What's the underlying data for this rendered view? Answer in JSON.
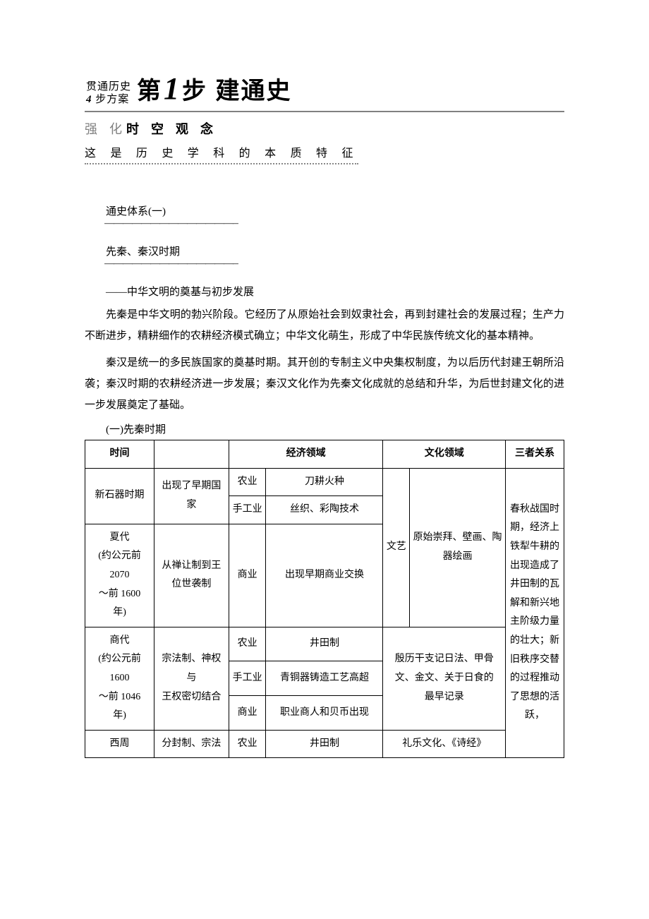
{
  "title": {
    "left_top": "贯通历史",
    "left_bottom_num": "4",
    "left_bottom_text": " 步方案",
    "main_prefix": "第",
    "main_num": "1",
    "main_suffix": "步 建通史",
    "sub1_light": "强 化 ",
    "sub1_bold": "时 空 观 念",
    "sub2": "这 是 历 史 学 科 的 本 质 特 征"
  },
  "sys_label": "通史体系(一)",
  "dash": "————————————————",
  "period_label": "先秦、秦汉时期",
  "subtitle": "——中华文明的奠基与初步发展",
  "para1": "先秦是中华文明的勃兴阶段。它经历了从原始社会到奴隶社会，再到封建社会的发展过程；生产力不断进步，精耕细作的农耕经济模式确立；中华文化萌生，形成了中华民族传统文化的基本精神。",
  "para2": "秦汉是统一的多民族国家的奠基时期。其开创的专制主义中央集权制度，为以后历代封建王朝所沿袭；秦汉时期的农耕经济进一步发展；秦汉文化作为先秦文化成就的总结和升华，为后世封建文化的进一步发展奠定了基础。",
  "section_head": "(一)先秦时期",
  "table": {
    "headers": {
      "time": "时间",
      "politics": "",
      "econ": "经济领域",
      "culture": "文化领域",
      "relation": "三者关系"
    },
    "culture_sub_label": "文艺",
    "rows": {
      "neolithic": {
        "time": "新石器时期",
        "politics": "出现了早期国家",
        "econ_agri_label": "农业",
        "econ_agri": "刀耕火种",
        "econ_craft_label": "手工业",
        "econ_craft": "丝织、彩陶技术",
        "culture_shared": "原始崇拜、壁画、陶器绘画"
      },
      "xia": {
        "time": "夏代\n(约公元前\n2070\n～前 1600\n年)",
        "politics": "从禅让制到王位世袭制",
        "econ_comm_label": "商业",
        "econ_comm": "出现早期商业交换"
      },
      "shang": {
        "time": "商代\n(约公元前\n1600\n～前 1046\n年)",
        "politics": "宗法制、神权与\n王权密切结合",
        "econ_agri_label": "农业",
        "econ_agri": "井田制",
        "econ_craft_label": "手工业",
        "econ_craft": "青铜器铸造工艺高超",
        "econ_comm_label": "商业",
        "econ_comm": "职业商人和贝币出现",
        "culture": "殷历干支记日法、甲骨文、金文、关于日食的\n最早记录"
      },
      "zhou": {
        "time": "西周",
        "politics": "分封制、宗法",
        "econ_agri_label": "农业",
        "econ_agri": "井田制",
        "culture": "礼乐文化、《诗经》"
      }
    },
    "relation_text": "春秋战国时期，经济上铁犁牛耕的出现造成了井田制的瓦解和新兴地主阶级力量的壮大；新旧秩序交替的过程推动了思想的活跃，"
  },
  "colors": {
    "text": "#000000",
    "bg": "#ffffff",
    "rule": "#808080"
  }
}
